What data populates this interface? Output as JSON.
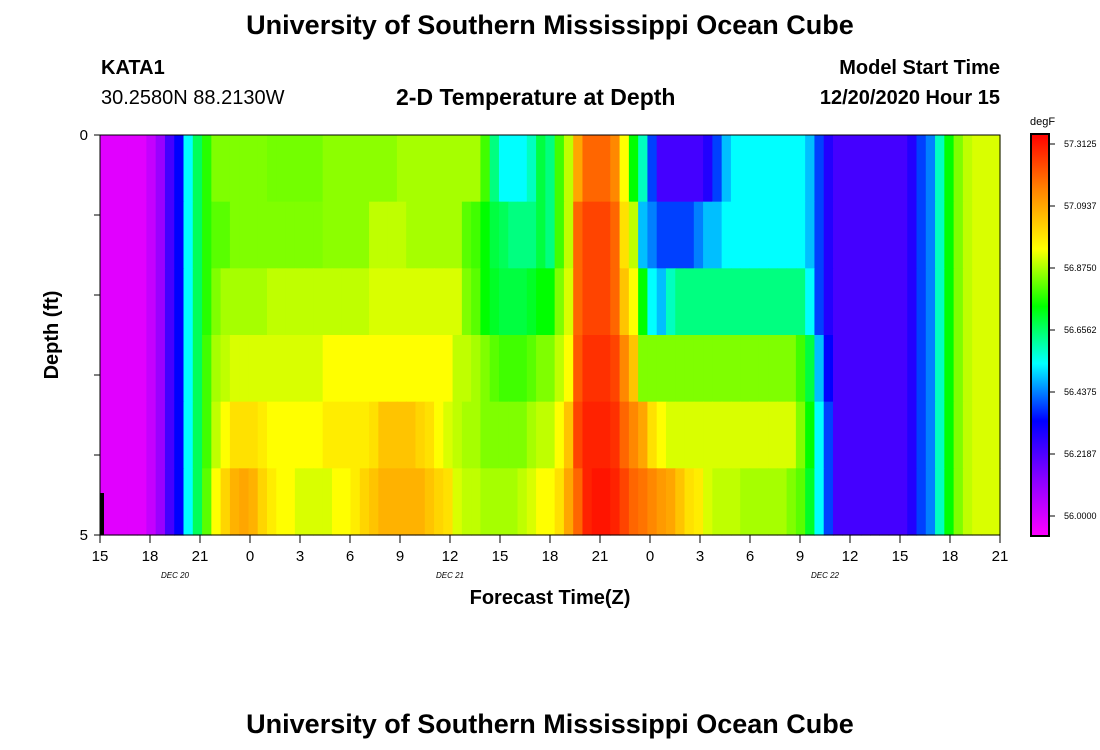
{
  "header": {
    "title": "University of Southern Mississippi Ocean Cube",
    "station": "KATA1",
    "coords": "30.2580N 88.2130W",
    "subtitle": "2-D Temperature at Depth",
    "model_label": "Model Start Time",
    "model_time": "12/20/2020 Hour 15"
  },
  "footer": {
    "title": "University of Southern Mississippi Ocean Cube"
  },
  "chart_data": {
    "type": "heatmap",
    "xlabel": "Forecast Time(Z)",
    "ylabel": "Depth (ft)",
    "x_tick_labels": [
      "15",
      "18",
      "21",
      "0",
      "3",
      "6",
      "9",
      "12",
      "15",
      "18",
      "21",
      "0",
      "3",
      "6",
      "9",
      "12",
      "15",
      "18",
      "21"
    ],
    "day_labels": [
      "DEC 20",
      "DEC 21",
      "DEC 22"
    ],
    "ylim": [
      0,
      5
    ],
    "y_tick_labels": [
      "0",
      "5"
    ],
    "colorbar": {
      "unit": "degF",
      "min": 55.95,
      "max": 57.35,
      "tick_labels": [
        "57.3125",
        "57.0937",
        "56.8750",
        "56.6562",
        "56.4375",
        "56.2187",
        "56.0000"
      ]
    },
    "colors": [
      "#ff00ff",
      "#8800ff",
      "#0000ff",
      "#00ffff",
      "#00ff00",
      "#ffff00",
      "#ff8800",
      "#ff0000"
    ],
    "time_step_hours": 1,
    "depth_levels": [
      0,
      1,
      2,
      3,
      4,
      5
    ],
    "rows": [
      [
        56.0,
        56.0,
        56.0,
        56.0,
        56.0,
        56.05,
        56.12,
        56.25,
        56.35,
        56.55,
        56.68,
        56.78,
        56.85,
        56.85,
        56.85,
        56.85,
        56.85,
        56.85,
        56.84,
        56.84,
        56.84,
        56.84,
        56.84,
        56.84,
        56.86,
        56.86,
        56.86,
        56.86,
        56.86,
        56.86,
        56.86,
        56.86,
        56.88,
        56.88,
        56.88,
        56.88,
        56.88,
        56.88,
        56.88,
        56.88,
        56.88,
        56.8,
        56.65,
        56.55,
        56.55,
        56.55,
        56.6,
        56.7,
        56.65,
        56.8,
        56.9,
        57.1,
        57.2,
        57.2,
        57.2,
        57.15,
        56.95,
        56.75,
        56.6,
        56.4,
        56.25,
        56.25,
        56.25,
        56.25,
        56.25,
        56.3,
        56.4,
        56.5,
        56.55,
        56.55,
        56.55,
        56.55,
        56.55,
        56.55,
        56.55,
        56.55,
        56.5,
        56.4,
        56.3,
        56.25,
        56.25,
        56.25,
        56.25,
        56.25,
        56.25,
        56.25,
        56.25,
        56.3,
        56.4,
        56.45,
        56.6,
        56.75,
        56.85,
        56.9,
        56.92,
        56.92,
        56.92
      ],
      [
        56.0,
        56.0,
        56.0,
        56.0,
        56.0,
        56.05,
        56.12,
        56.25,
        56.35,
        56.55,
        56.68,
        56.78,
        56.82,
        56.82,
        56.85,
        56.85,
        56.85,
        56.85,
        56.85,
        56.85,
        56.85,
        56.85,
        56.85,
        56.85,
        56.86,
        56.86,
        56.86,
        56.86,
        56.86,
        56.9,
        56.9,
        56.9,
        56.9,
        56.88,
        56.88,
        56.88,
        56.88,
        56.88,
        56.88,
        56.82,
        56.8,
        56.75,
        56.7,
        56.68,
        56.65,
        56.65,
        56.65,
        56.7,
        56.65,
        56.8,
        56.9,
        57.2,
        57.25,
        57.25,
        57.25,
        57.2,
        57.0,
        56.9,
        56.5,
        56.45,
        56.4,
        56.4,
        56.4,
        56.4,
        56.45,
        56.5,
        56.5,
        56.55,
        56.55,
        56.55,
        56.55,
        56.55,
        56.55,
        56.55,
        56.55,
        56.55,
        56.5,
        56.4,
        56.3,
        56.25,
        56.25,
        56.25,
        56.25,
        56.25,
        56.25,
        56.25,
        56.25,
        56.3,
        56.4,
        56.45,
        56.6,
        56.75,
        56.85,
        56.9,
        56.92,
        56.92,
        56.92
      ],
      [
        56.0,
        56.0,
        56.0,
        56.0,
        56.0,
        56.05,
        56.12,
        56.25,
        56.35,
        56.55,
        56.68,
        56.78,
        56.85,
        56.88,
        56.88,
        56.88,
        56.88,
        56.88,
        56.9,
        56.9,
        56.9,
        56.9,
        56.9,
        56.9,
        56.9,
        56.9,
        56.9,
        56.9,
        56.9,
        56.92,
        56.92,
        56.92,
        56.92,
        56.92,
        56.92,
        56.92,
        56.92,
        56.92,
        56.92,
        56.85,
        56.82,
        56.75,
        56.72,
        56.7,
        56.7,
        56.7,
        56.72,
        56.75,
        56.75,
        56.85,
        56.92,
        57.2,
        57.25,
        57.25,
        57.25,
        57.2,
        57.05,
        56.95,
        56.75,
        56.55,
        56.5,
        56.6,
        56.65,
        56.65,
        56.65,
        56.65,
        56.65,
        56.65,
        56.65,
        56.65,
        56.65,
        56.65,
        56.65,
        56.65,
        56.65,
        56.65,
        56.55,
        56.4,
        56.3,
        56.25,
        56.25,
        56.25,
        56.25,
        56.25,
        56.25,
        56.25,
        56.25,
        56.3,
        56.4,
        56.45,
        56.6,
        56.75,
        56.85,
        56.9,
        56.92,
        56.92,
        56.92
      ],
      [
        56.0,
        56.0,
        56.0,
        56.0,
        56.0,
        56.05,
        56.12,
        56.25,
        56.35,
        56.55,
        56.68,
        56.8,
        56.88,
        56.9,
        56.92,
        56.92,
        56.92,
        56.92,
        56.92,
        56.92,
        56.92,
        56.92,
        56.92,
        56.92,
        56.95,
        56.95,
        56.95,
        56.95,
        56.95,
        56.95,
        56.95,
        56.95,
        56.95,
        56.95,
        56.95,
        56.95,
        56.95,
        56.95,
        56.9,
        56.9,
        56.88,
        56.85,
        56.82,
        56.8,
        56.8,
        56.8,
        56.82,
        56.85,
        56.85,
        56.9,
        56.95,
        57.22,
        57.28,
        57.28,
        57.28,
        57.25,
        57.15,
        57.05,
        56.85,
        56.85,
        56.85,
        56.85,
        56.85,
        56.85,
        56.85,
        56.85,
        56.85,
        56.85,
        56.85,
        56.85,
        56.85,
        56.85,
        56.85,
        56.85,
        56.85,
        56.8,
        56.7,
        56.5,
        56.35,
        56.25,
        56.25,
        56.25,
        56.25,
        56.25,
        56.25,
        56.25,
        56.25,
        56.3,
        56.4,
        56.45,
        56.6,
        56.75,
        56.85,
        56.9,
        56.92,
        56.92,
        56.92
      ],
      [
        56.0,
        56.0,
        56.0,
        56.0,
        56.0,
        56.05,
        56.12,
        56.25,
        56.35,
        56.55,
        56.68,
        56.8,
        56.9,
        56.95,
        57.0,
        57.0,
        57.0,
        56.98,
        56.95,
        56.95,
        56.95,
        56.95,
        56.95,
        56.95,
        56.98,
        56.98,
        56.98,
        56.98,
        56.98,
        57.0,
        57.05,
        57.05,
        57.05,
        57.05,
        57.02,
        57.0,
        56.95,
        56.92,
        56.9,
        56.88,
        56.88,
        56.85,
        56.85,
        56.85,
        56.85,
        56.85,
        56.88,
        56.9,
        56.9,
        56.95,
        57.05,
        57.25,
        57.3,
        57.3,
        57.3,
        57.28,
        57.2,
        57.15,
        57.1,
        57.0,
        56.95,
        56.92,
        56.92,
        56.92,
        56.92,
        56.92,
        56.92,
        56.92,
        56.92,
        56.92,
        56.92,
        56.92,
        56.92,
        56.92,
        56.92,
        56.85,
        56.75,
        56.55,
        56.4,
        56.25,
        56.25,
        56.25,
        56.25,
        56.25,
        56.25,
        56.25,
        56.25,
        56.3,
        56.4,
        56.45,
        56.6,
        56.75,
        56.85,
        56.9,
        56.92,
        56.92,
        56.92
      ],
      [
        56.0,
        56.0,
        56.0,
        56.0,
        56.0,
        56.05,
        56.12,
        56.25,
        56.35,
        56.55,
        56.68,
        56.82,
        56.95,
        57.02,
        57.08,
        57.1,
        57.08,
        57.02,
        56.98,
        56.95,
        56.95,
        56.92,
        56.92,
        56.92,
        56.92,
        56.95,
        56.95,
        56.98,
        57.02,
        57.05,
        57.08,
        57.08,
        57.08,
        57.08,
        57.08,
        57.05,
        57.02,
        57.0,
        56.92,
        56.9,
        56.9,
        56.88,
        56.88,
        56.88,
        56.88,
        56.9,
        56.92,
        56.95,
        56.95,
        57.0,
        57.1,
        57.2,
        57.3,
        57.32,
        57.32,
        57.3,
        57.25,
        57.2,
        57.18,
        57.15,
        57.12,
        57.1,
        57.05,
        57.0,
        56.98,
        56.92,
        56.9,
        56.9,
        56.9,
        56.88,
        56.88,
        56.88,
        56.88,
        56.88,
        56.85,
        56.82,
        56.72,
        56.55,
        56.4,
        56.25,
        56.25,
        56.25,
        56.25,
        56.25,
        56.25,
        56.25,
        56.25,
        56.3,
        56.4,
        56.45,
        56.6,
        56.75,
        56.85,
        56.9,
        56.92,
        56.92,
        56.92
      ]
    ]
  }
}
